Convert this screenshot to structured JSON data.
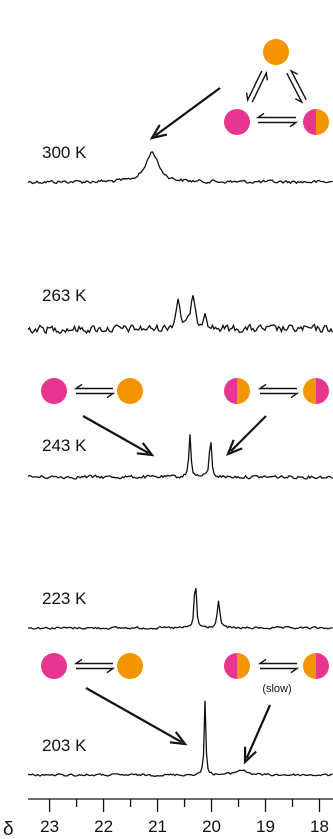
{
  "chart_data": {
    "type": "line",
    "x_axis": {
      "symbol": "δ",
      "reversed": true,
      "range": [
        23.4,
        17.75
      ],
      "ticks": [
        23,
        22,
        21,
        20,
        19,
        18
      ],
      "tick_labels": [
        "23",
        "22",
        "21",
        "20",
        "19",
        "18"
      ]
    },
    "grid": false,
    "spectra": [
      {
        "label": "300 K",
        "peaks": [
          {
            "x": 21.1,
            "height": 30,
            "width": 0.28,
            "shape": "broad"
          }
        ],
        "noise": 3
      },
      {
        "label": "263 K",
        "peaks": [
          {
            "x": 20.62,
            "height": 30,
            "width": 0.09
          },
          {
            "x": 20.35,
            "height": 32,
            "width": 0.09
          },
          {
            "x": 20.12,
            "height": 17,
            "width": 0.08
          }
        ],
        "noise": 7
      },
      {
        "label": "243 K",
        "peaks": [
          {
            "x": 20.4,
            "height": 42,
            "width": 0.045
          },
          {
            "x": 20.02,
            "height": 40,
            "width": 0.045
          }
        ],
        "noise": 3
      },
      {
        "label": "223 K",
        "peaks": [
          {
            "x": 20.3,
            "height": 52,
            "width": 0.042
          },
          {
            "x": 19.87,
            "height": 27,
            "width": 0.055
          }
        ],
        "noise": 2
      },
      {
        "label": "203 K",
        "peaks": [
          {
            "x": 20.12,
            "height": 74,
            "width": 0.035
          },
          {
            "x": 19.45,
            "height": 5,
            "width": 0.25
          }
        ],
        "noise": 2
      }
    ],
    "annotations": [
      {
        "text": "(slow)"
      }
    ],
    "schemes": [
      {
        "name": "triangle-equilibrium",
        "species": [
          "orange",
          "magenta",
          "half-magenta-orange"
        ]
      },
      {
        "name": "equilibrium-243-left",
        "species": [
          "magenta",
          "orange"
        ]
      },
      {
        "name": "equilibrium-243-right",
        "species": [
          "half-magenta-orange",
          "half-orange-magenta"
        ]
      },
      {
        "name": "equilibrium-203-left",
        "species": [
          "magenta",
          "orange"
        ]
      },
      {
        "name": "equilibrium-203-right",
        "species": [
          "half-magenta-orange",
          "half-orange-magenta"
        ],
        "note": "(slow)"
      }
    ],
    "colors": {
      "magenta": "#e8358f",
      "orange": "#f29500",
      "line": "#111111"
    }
  }
}
